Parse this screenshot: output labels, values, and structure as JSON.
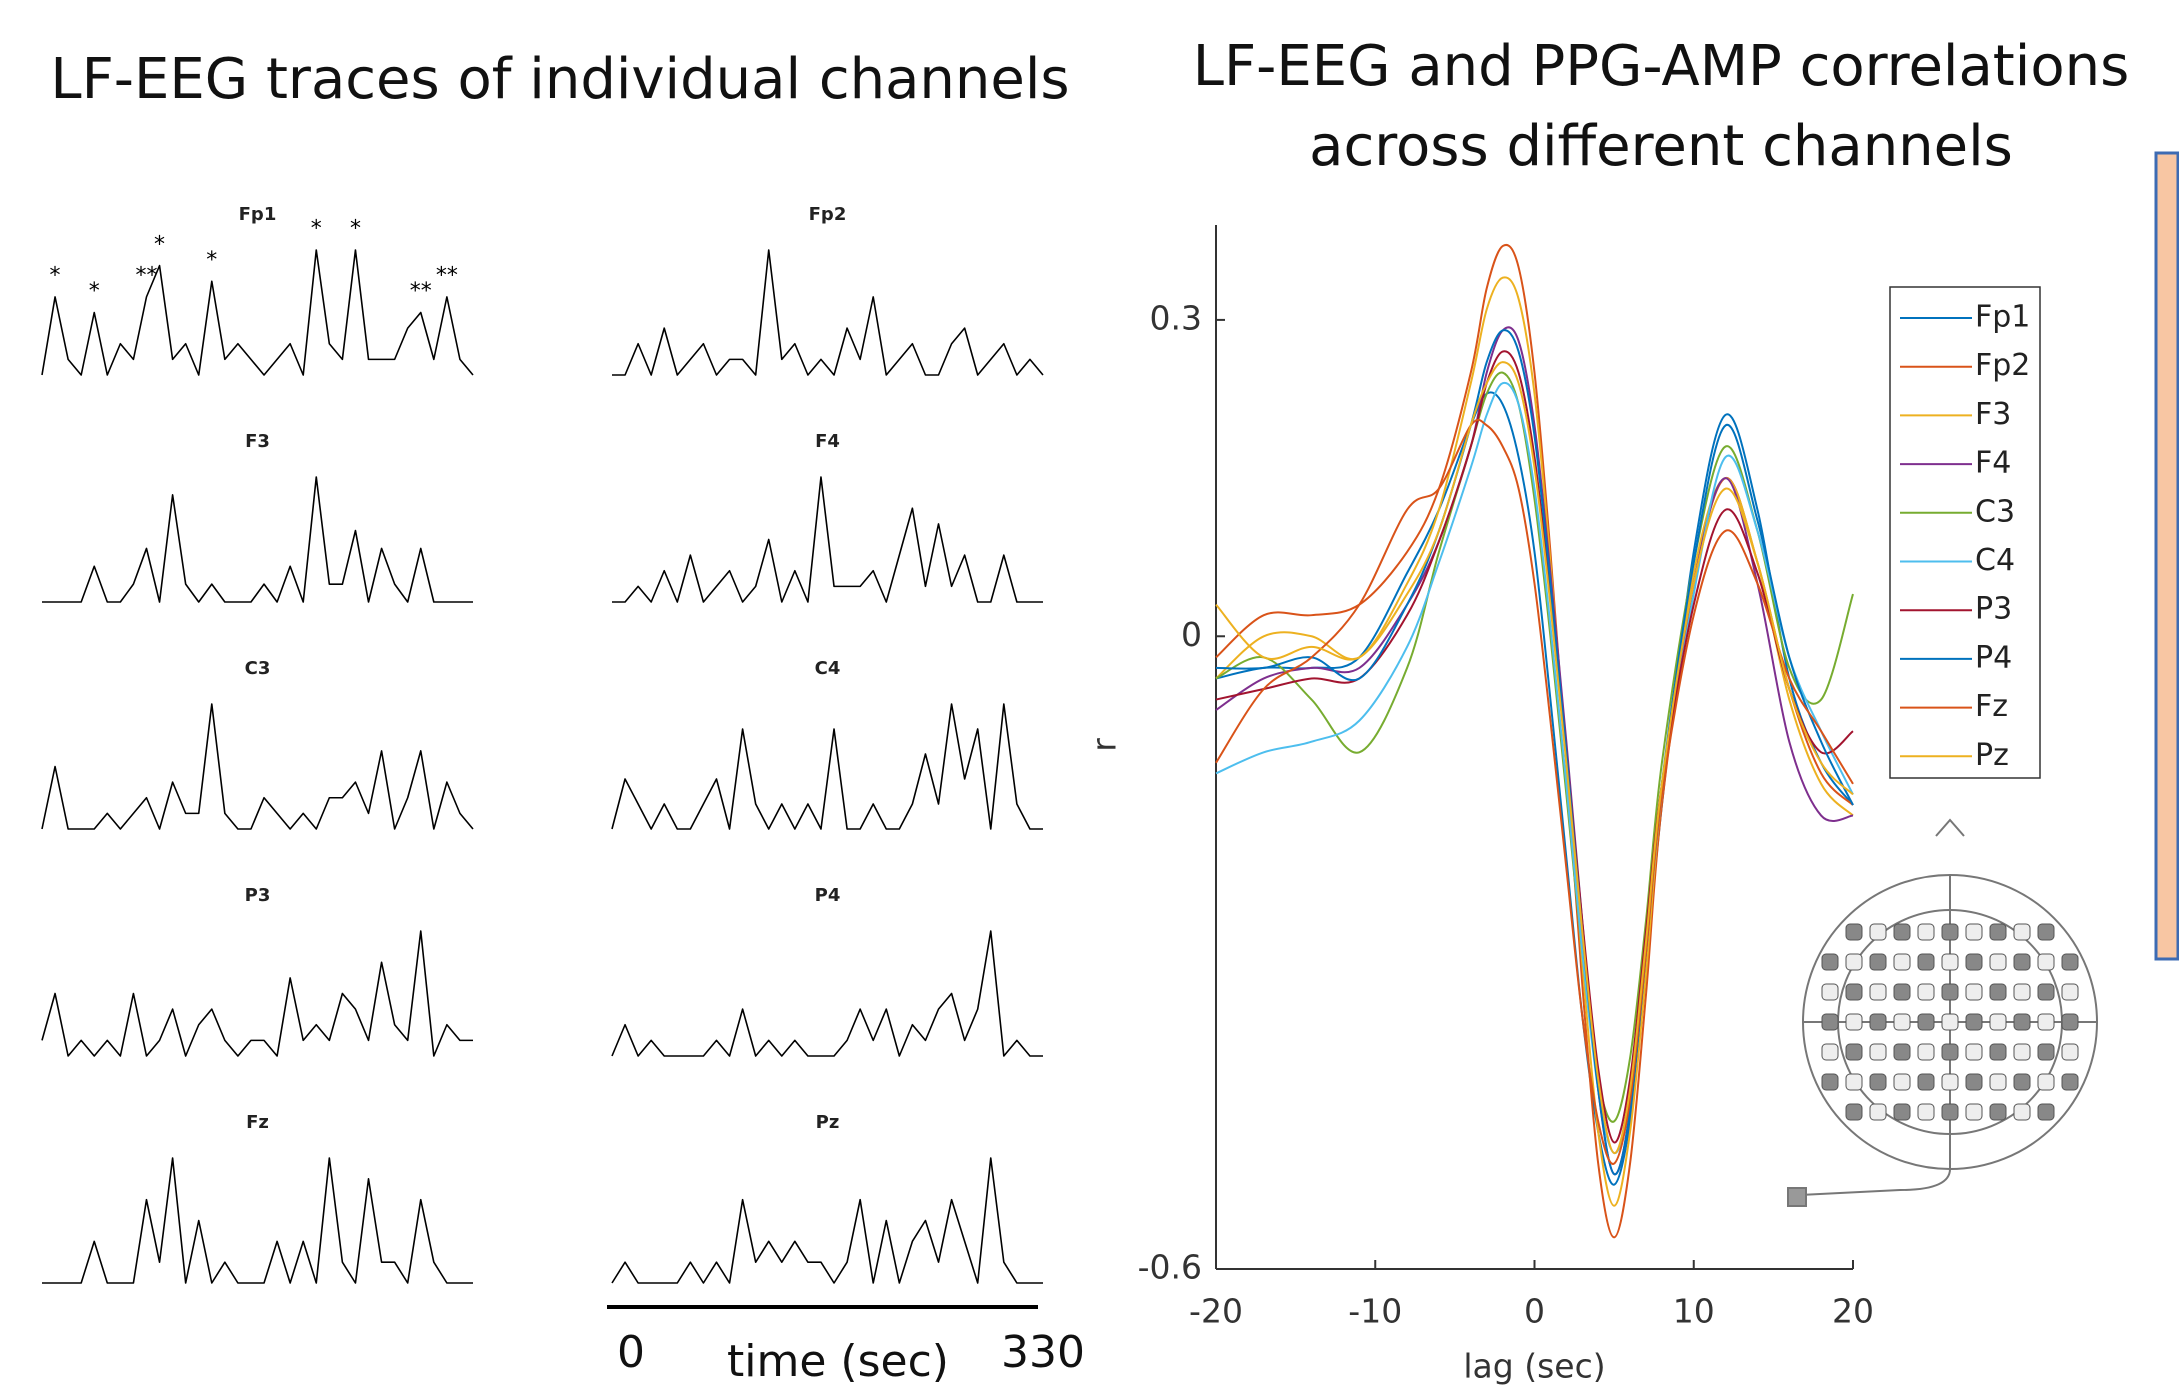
{
  "chart_data": [
    {
      "type": "line",
      "title": "LF-EEG traces of individual channels",
      "xlabel": "time (sec)",
      "xlim": [
        0,
        330
      ],
      "xticks": [
        0,
        330
      ],
      "x": [
        0,
        10,
        20,
        30,
        40,
        50,
        60,
        70,
        80,
        90,
        100,
        110,
        120,
        130,
        140,
        150,
        160,
        170,
        180,
        190,
        200,
        210,
        220,
        230,
        240,
        250,
        260,
        270,
        280,
        290,
        300,
        310,
        320,
        330
      ],
      "series": [
        {
          "name": "Fp1",
          "color": "#000000",
          "values": [
            1,
            6,
            2,
            1,
            5,
            1,
            3,
            2,
            6,
            8,
            2,
            3,
            1,
            7,
            2,
            3,
            2,
            1,
            2,
            3,
            1,
            9,
            3,
            2,
            9,
            2,
            2,
            2,
            4,
            5,
            2,
            6,
            2,
            1
          ]
        },
        {
          "name": "Fp2",
          "color": "#000000",
          "values": [
            1,
            1,
            3,
            1,
            4,
            1,
            2,
            3,
            1,
            2,
            2,
            1,
            9,
            2,
            3,
            1,
            2,
            1,
            4,
            2,
            6,
            1,
            2,
            3,
            1,
            1,
            3,
            4,
            1,
            2,
            3,
            1,
            2,
            1
          ]
        },
        {
          "name": "F3",
          "color": "#000000",
          "values": [
            1,
            1,
            1,
            1,
            3,
            1,
            1,
            2,
            4,
            1,
            7,
            2,
            1,
            2,
            1,
            1,
            1,
            2,
            1,
            3,
            1,
            8,
            2,
            2,
            5,
            1,
            4,
            2,
            1,
            4,
            1,
            1,
            1,
            1
          ]
        },
        {
          "name": "F4",
          "color": "#000000",
          "values": [
            1,
            1,
            2,
            1,
            3,
            1,
            4,
            1,
            2,
            3,
            1,
            2,
            5,
            1,
            3,
            1,
            9,
            2,
            2,
            2,
            3,
            1,
            4,
            7,
            2,
            6,
            2,
            4,
            1,
            1,
            4,
            1,
            1,
            1
          ]
        },
        {
          "name": "C3",
          "color": "#000000",
          "values": [
            1,
            5,
            1,
            1,
            1,
            2,
            1,
            2,
            3,
            1,
            4,
            2,
            2,
            9,
            2,
            1,
            1,
            3,
            2,
            1,
            2,
            1,
            3,
            3,
            4,
            2,
            6,
            1,
            3,
            6,
            1,
            4,
            2,
            1
          ]
        },
        {
          "name": "C4",
          "color": "#000000",
          "values": [
            1,
            3,
            2,
            1,
            2,
            1,
            1,
            2,
            3,
            1,
            5,
            2,
            1,
            2,
            1,
            2,
            1,
            5,
            1,
            1,
            2,
            1,
            1,
            2,
            4,
            2,
            6,
            3,
            5,
            1,
            6,
            2,
            1,
            1
          ]
        },
        {
          "name": "P3",
          "color": "#000000",
          "values": [
            2,
            5,
            1,
            2,
            1,
            2,
            1,
            5,
            1,
            2,
            4,
            1,
            3,
            4,
            2,
            1,
            2,
            2,
            1,
            6,
            2,
            3,
            2,
            5,
            4,
            2,
            7,
            3,
            2,
            9,
            1,
            3,
            2,
            2
          ]
        },
        {
          "name": "P4",
          "color": "#000000",
          "values": [
            1,
            3,
            1,
            2,
            1,
            1,
            1,
            1,
            2,
            1,
            4,
            1,
            2,
            1,
            2,
            1,
            1,
            1,
            2,
            4,
            2,
            4,
            1,
            3,
            2,
            4,
            5,
            2,
            4,
            9,
            1,
            2,
            1,
            1
          ]
        },
        {
          "name": "Fz",
          "color": "#000000",
          "values": [
            1,
            1,
            1,
            1,
            3,
            1,
            1,
            1,
            5,
            2,
            7,
            1,
            4,
            1,
            2,
            1,
            1,
            1,
            3,
            1,
            3,
            1,
            7,
            2,
            1,
            6,
            2,
            2,
            1,
            5,
            2,
            1,
            1,
            1
          ]
        },
        {
          "name": "Pz",
          "color": "#000000",
          "values": [
            1,
            2,
            1,
            1,
            1,
            1,
            2,
            1,
            2,
            1,
            5,
            2,
            3,
            2,
            3,
            2,
            2,
            1,
            2,
            5,
            1,
            4,
            1,
            3,
            4,
            2,
            5,
            3,
            1,
            7,
            2,
            1,
            1,
            1
          ]
        }
      ],
      "annotations": [
        {
          "text": "*",
          "x": 10,
          "y": 7.3
        },
        {
          "text": "*",
          "x": 40,
          "y": 6.3
        },
        {
          "text": "**",
          "x": 80,
          "y": 7.3
        },
        {
          "text": "*",
          "x": 90,
          "y": 9.3
        },
        {
          "text": "*",
          "x": 130,
          "y": 8.3
        },
        {
          "text": "*",
          "x": 210,
          "y": 10.3
        },
        {
          "text": "*",
          "x": 240,
          "y": 10.3
        },
        {
          "text": "**",
          "x": 290,
          "y": 6.3
        },
        {
          "text": "**",
          "x": 310,
          "y": 7.3
        }
      ]
    },
    {
      "type": "line",
      "title": [
        "LF-EEG and PPG-AMP correlations",
        "across different channels"
      ],
      "xlabel": "lag (sec)",
      "ylabel": "r",
      "xlim": [
        -20,
        20
      ],
      "xticks": [
        -20,
        -10,
        0,
        10,
        20
      ],
      "ylim": [
        -0.6,
        0.39
      ],
      "yticks": [
        -0.6,
        0,
        0.3
      ],
      "x": [
        -20,
        -17,
        -14,
        -11,
        -8,
        -6,
        -4,
        -3,
        -2,
        -1,
        0,
        1,
        2,
        3,
        4,
        5,
        6,
        7,
        8,
        10,
        12,
        14,
        16,
        18,
        20
      ],
      "series": [
        {
          "name": "Fp1",
          "color": "#0072BD",
          "values": [
            -0.04,
            -0.03,
            -0.03,
            -0.02,
            0.06,
            0.12,
            0.2,
            0.23,
            0.22,
            0.17,
            0.08,
            -0.06,
            -0.21,
            -0.36,
            -0.47,
            -0.52,
            -0.46,
            -0.32,
            -0.16,
            0.08,
            0.21,
            0.12,
            -0.04,
            -0.12,
            -0.16
          ]
        },
        {
          "name": "Fp2",
          "color": "#D95319",
          "values": [
            -0.02,
            0.02,
            0.02,
            0.03,
            0.08,
            0.14,
            0.25,
            0.33,
            0.37,
            0.35,
            0.25,
            0.08,
            -0.12,
            -0.33,
            -0.5,
            -0.57,
            -0.5,
            -0.34,
            -0.16,
            0.05,
            0.15,
            0.07,
            -0.05,
            -0.13,
            -0.16
          ]
        },
        {
          "name": "F3",
          "color": "#EDB120",
          "values": [
            -0.04,
            0.0,
            0.0,
            -0.02,
            0.05,
            0.12,
            0.24,
            0.31,
            0.34,
            0.32,
            0.23,
            0.07,
            -0.12,
            -0.31,
            -0.47,
            -0.54,
            -0.47,
            -0.32,
            -0.15,
            0.06,
            0.15,
            0.07,
            -0.06,
            -0.14,
            -0.17
          ]
        },
        {
          "name": "F4",
          "color": "#7E2F8E",
          "values": [
            -0.07,
            -0.04,
            -0.03,
            -0.03,
            0.03,
            0.09,
            0.18,
            0.25,
            0.29,
            0.28,
            0.2,
            0.06,
            -0.1,
            -0.27,
            -0.43,
            -0.51,
            -0.45,
            -0.3,
            -0.15,
            0.05,
            0.15,
            0.05,
            -0.1,
            -0.17,
            -0.17
          ]
        },
        {
          "name": "C3",
          "color": "#77AC30",
          "values": [
            -0.04,
            -0.02,
            -0.06,
            -0.11,
            -0.03,
            0.08,
            0.18,
            0.23,
            0.25,
            0.22,
            0.13,
            0.0,
            -0.15,
            -0.3,
            -0.42,
            -0.46,
            -0.4,
            -0.27,
            -0.12,
            0.07,
            0.18,
            0.1,
            -0.03,
            -0.06,
            0.04
          ]
        },
        {
          "name": "C4",
          "color": "#4DBEEE",
          "values": [
            -0.13,
            -0.11,
            -0.1,
            -0.08,
            -0.01,
            0.07,
            0.16,
            0.21,
            0.24,
            0.22,
            0.14,
            0.01,
            -0.14,
            -0.3,
            -0.43,
            -0.49,
            -0.44,
            -0.3,
            -0.15,
            0.04,
            0.17,
            0.1,
            -0.02,
            -0.09,
            -0.15
          ]
        },
        {
          "name": "P3",
          "color": "#A2142F",
          "values": [
            -0.06,
            -0.05,
            -0.04,
            -0.04,
            0.02,
            0.09,
            0.18,
            0.24,
            0.27,
            0.25,
            0.17,
            0.04,
            -0.11,
            -0.27,
            -0.41,
            -0.48,
            -0.42,
            -0.28,
            -0.14,
            0.03,
            0.12,
            0.06,
            -0.05,
            -0.11,
            -0.09
          ]
        },
        {
          "name": "P4",
          "color": "#0072BD",
          "values": [
            -0.03,
            -0.03,
            -0.02,
            -0.04,
            0.03,
            0.1,
            0.2,
            0.26,
            0.29,
            0.27,
            0.19,
            0.05,
            -0.11,
            -0.28,
            -0.43,
            -0.51,
            -0.45,
            -0.3,
            -0.14,
            0.07,
            0.2,
            0.11,
            -0.02,
            -0.1,
            -0.16
          ]
        },
        {
          "name": "Fz",
          "color": "#D95319",
          "values": [
            -0.12,
            -0.05,
            -0.02,
            0.03,
            0.12,
            0.14,
            0.2,
            0.2,
            0.18,
            0.14,
            0.05,
            -0.08,
            -0.22,
            -0.36,
            -0.46,
            -0.5,
            -0.44,
            -0.3,
            -0.15,
            0.02,
            0.1,
            0.05,
            -0.04,
            -0.09,
            -0.14
          ]
        },
        {
          "name": "Pz",
          "color": "#EDB120",
          "values": [
            0.03,
            -0.02,
            -0.01,
            -0.02,
            0.04,
            0.1,
            0.2,
            0.24,
            0.26,
            0.24,
            0.16,
            0.03,
            -0.12,
            -0.28,
            -0.42,
            -0.49,
            -0.43,
            -0.29,
            -0.14,
            0.05,
            0.14,
            0.07,
            -0.05,
            -0.12,
            -0.15
          ]
        }
      ]
    }
  ]
}
